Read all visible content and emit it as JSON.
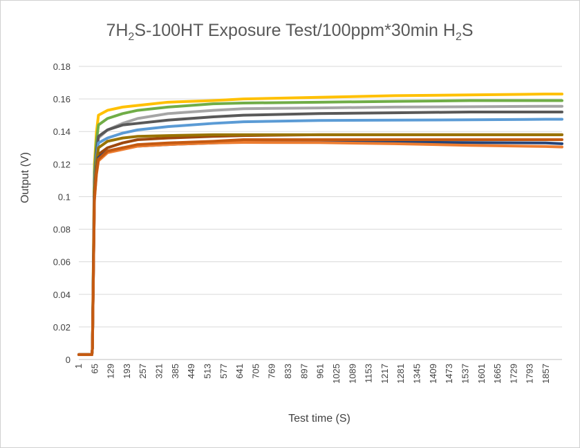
{
  "chart_data": {
    "type": "line",
    "title": {
      "parts": [
        {
          "text": "7H",
          "sub": false
        },
        {
          "text": "2",
          "sub": true
        },
        {
          "text": "S-100HT Exposure Test/100ppm*30min H",
          "sub": false
        },
        {
          "text": "2",
          "sub": true
        },
        {
          "text": "S",
          "sub": false
        }
      ]
    },
    "xlabel": "Test time (S)",
    "ylabel": "Output (V)",
    "ylim": [
      0,
      0.18
    ],
    "xlim": [
      1,
      1920
    ],
    "y_ticks": [
      "0",
      "0.02",
      "0.04",
      "0.06",
      "0.08",
      "0.1",
      "0.12",
      "0.14",
      "0.16",
      "0.18"
    ],
    "x_ticks": [
      1,
      65,
      129,
      193,
      257,
      321,
      385,
      449,
      513,
      577,
      641,
      705,
      769,
      833,
      897,
      961,
      1025,
      1089,
      1153,
      1217,
      1281,
      1345,
      1409,
      1473,
      1537,
      1601,
      1665,
      1729,
      1793,
      1857
    ],
    "grid": "horizontal",
    "legend": "none",
    "baseline": 0.003,
    "step_time": 55,
    "series": [
      {
        "color": "#FFC000",
        "values": {
          "0.4": 0.15,
          "1": 0.153,
          "2": 0.155,
          "3": 0.156,
          "5": 0.158,
          "8": 0.159,
          "10": 0.16,
          "15": 0.161,
          "20": 0.162,
          "25": 0.1625,
          "30": 0.163,
          "32": 0.163
        }
      },
      {
        "color": "#70AD47",
        "values": {
          "0.4": 0.144,
          "1": 0.148,
          "2": 0.151,
          "3": 0.153,
          "5": 0.155,
          "8": 0.157,
          "10": 0.1575,
          "15": 0.158,
          "20": 0.1585,
          "25": 0.159,
          "30": 0.159,
          "32": 0.159
        }
      },
      {
        "color": "#A5A5A5",
        "values": {
          "0.4": 0.136,
          "1": 0.141,
          "2": 0.145,
          "3": 0.148,
          "5": 0.151,
          "8": 0.153,
          "10": 0.154,
          "15": 0.1545,
          "20": 0.155,
          "25": 0.1552,
          "30": 0.1555,
          "32": 0.1555
        }
      },
      {
        "color": "#595959",
        "values": {
          "0.4": 0.137,
          "1": 0.141,
          "2": 0.144,
          "3": 0.145,
          "5": 0.147,
          "8": 0.149,
          "10": 0.15,
          "15": 0.151,
          "20": 0.1515,
          "25": 0.152,
          "30": 0.152,
          "32": 0.152
        }
      },
      {
        "color": "#5B9BD5",
        "values": {
          "0.4": 0.133,
          "1": 0.136,
          "2": 0.139,
          "3": 0.141,
          "5": 0.143,
          "8": 0.145,
          "10": 0.146,
          "15": 0.1468,
          "20": 0.147,
          "25": 0.1472,
          "30": 0.1475,
          "32": 0.1475
        }
      },
      {
        "color": "#9E480E",
        "values": {
          "0.4": 0.126,
          "1": 0.13,
          "2": 0.133,
          "3": 0.135,
          "5": 0.136,
          "8": 0.137,
          "10": 0.1375,
          "15": 0.138,
          "20": 0.138,
          "25": 0.138,
          "30": 0.138,
          "32": 0.138
        }
      },
      {
        "color": "#997300",
        "values": {
          "0.4": 0.13,
          "1": 0.134,
          "2": 0.136,
          "3": 0.137,
          "5": 0.1375,
          "8": 0.138,
          "10": 0.138,
          "15": 0.138,
          "20": 0.138,
          "25": 0.138,
          "30": 0.138,
          "32": 0.138
        }
      },
      {
        "color": "#264478",
        "values": {
          "0.4": 0.124,
          "1": 0.128,
          "2": 0.13,
          "3": 0.131,
          "5": 0.132,
          "8": 0.133,
          "10": 0.1335,
          "15": 0.134,
          "20": 0.1335,
          "25": 0.1332,
          "30": 0.133,
          "32": 0.1325
        }
      },
      {
        "color": "#ED7D31",
        "values": {
          "0.4": 0.122,
          "1": 0.127,
          "2": 0.129,
          "3": 0.131,
          "5": 0.132,
          "8": 0.133,
          "10": 0.1333,
          "15": 0.1332,
          "20": 0.1325,
          "25": 0.1315,
          "30": 0.1308,
          "32": 0.1305
        }
      },
      {
        "color": "#C55A11",
        "values": {
          "0.4": 0.123,
          "1": 0.128,
          "2": 0.13,
          "3": 0.132,
          "5": 0.133,
          "8": 0.134,
          "10": 0.135,
          "15": 0.135,
          "20": 0.135,
          "25": 0.135,
          "30": 0.135,
          "32": 0.135
        }
      }
    ]
  }
}
